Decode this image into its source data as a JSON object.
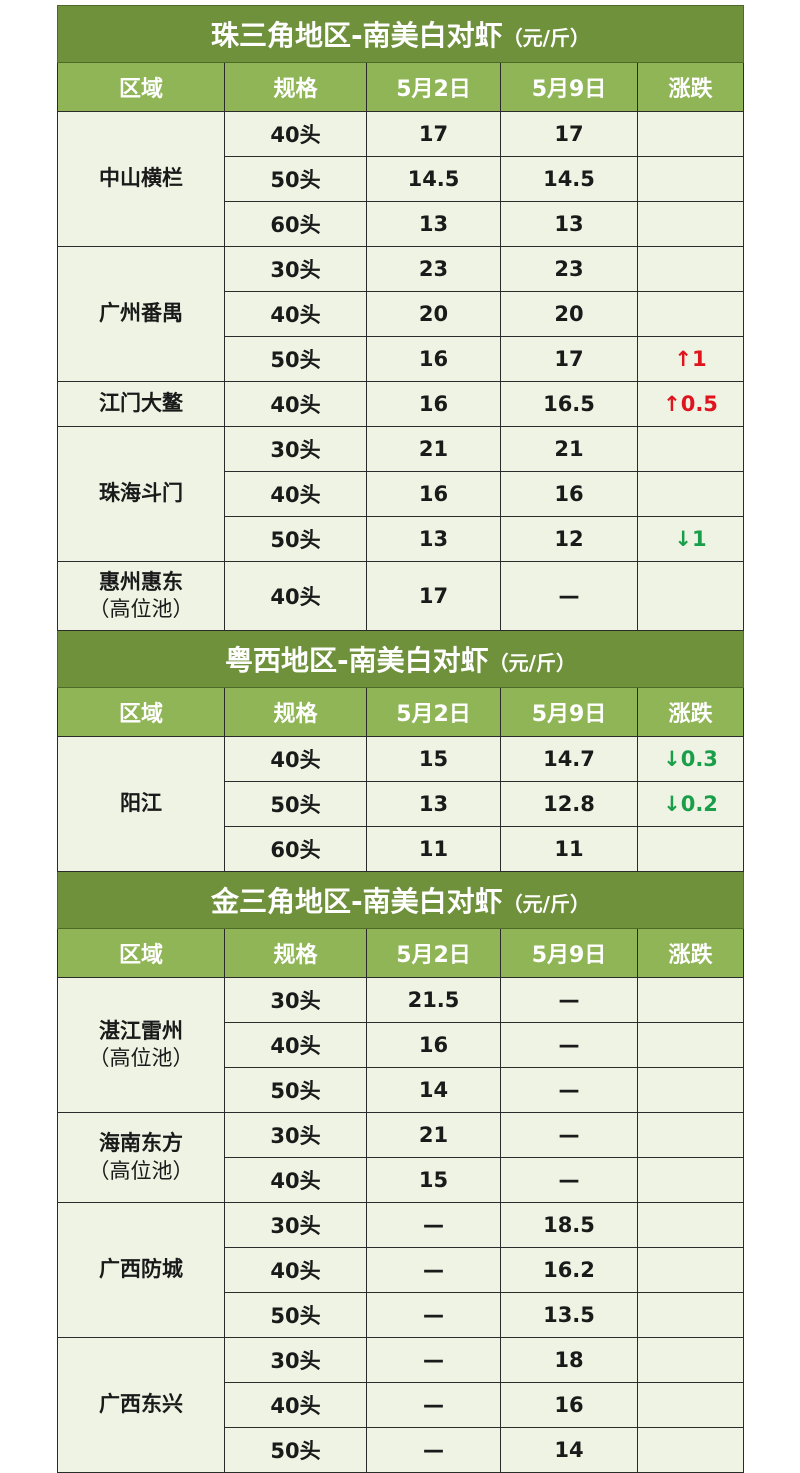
{
  "headers": [
    "区域",
    "规格",
    "5月2日",
    "5月9日",
    "涨跌"
  ],
  "colors": {
    "title_bg": "#6f913b",
    "header_bg": "#8fb556",
    "cell_bg": "#eef3e3",
    "up": "#e0141e",
    "down": "#1a9e4a"
  },
  "sections": [
    {
      "title": "珠三角地区-南美白对虾",
      "unit": "（元/斤）",
      "regions": [
        {
          "name": "中山横栏",
          "rows": [
            [
              "40头",
              "17",
              "17",
              ""
            ],
            [
              "50头",
              "14.5",
              "14.5",
              ""
            ],
            [
              "60头",
              "13",
              "13",
              ""
            ]
          ]
        },
        {
          "name": "广州番禺",
          "rows": [
            [
              "30头",
              "23",
              "23",
              ""
            ],
            [
              "40头",
              "20",
              "20",
              ""
            ],
            [
              "50头",
              "16",
              "17",
              "↑1"
            ]
          ]
        },
        {
          "name": "江门大鳌",
          "rows": [
            [
              "40头",
              "16",
              "16.5",
              "↑0.5"
            ]
          ]
        },
        {
          "name": "珠海斗门",
          "rows": [
            [
              "30头",
              "21",
              "21",
              ""
            ],
            [
              "40头",
              "16",
              "16",
              ""
            ],
            [
              "50头",
              "13",
              "12",
              "↓1"
            ]
          ]
        },
        {
          "name": "惠州惠东",
          "sub": "（高位池）",
          "tall": true,
          "rows": [
            [
              "40头",
              "17",
              "—",
              ""
            ]
          ]
        }
      ]
    },
    {
      "title": "粤西地区-南美白对虾",
      "unit": "（元/斤）",
      "regions": [
        {
          "name": "阳江",
          "rows": [
            [
              "40头",
              "15",
              "14.7",
              "↓0.3"
            ],
            [
              "50头",
              "13",
              "12.8",
              "↓0.2"
            ],
            [
              "60头",
              "11",
              "11",
              ""
            ]
          ]
        }
      ]
    },
    {
      "title": "金三角地区-南美白对虾",
      "unit": "（元/斤）",
      "regions": [
        {
          "name": "湛江雷州",
          "sub": "（高位池）",
          "rows": [
            [
              "30头",
              "21.5",
              "—",
              ""
            ],
            [
              "40头",
              "16",
              "—",
              ""
            ],
            [
              "50头",
              "14",
              "—",
              ""
            ]
          ]
        },
        {
          "name": "海南东方",
          "sub": "（高位池）",
          "rows": [
            [
              "30头",
              "21",
              "—",
              ""
            ],
            [
              "40头",
              "15",
              "—",
              ""
            ]
          ]
        },
        {
          "name": "广西防城",
          "rows": [
            [
              "30头",
              "—",
              "18.5",
              ""
            ],
            [
              "40头",
              "—",
              "16.2",
              ""
            ],
            [
              "50头",
              "—",
              "13.5",
              ""
            ]
          ]
        },
        {
          "name": "广西东兴",
          "rows": [
            [
              "30头",
              "—",
              "18",
              ""
            ],
            [
              "40头",
              "—",
              "16",
              ""
            ],
            [
              "50头",
              "—",
              "14",
              ""
            ]
          ]
        }
      ]
    }
  ]
}
